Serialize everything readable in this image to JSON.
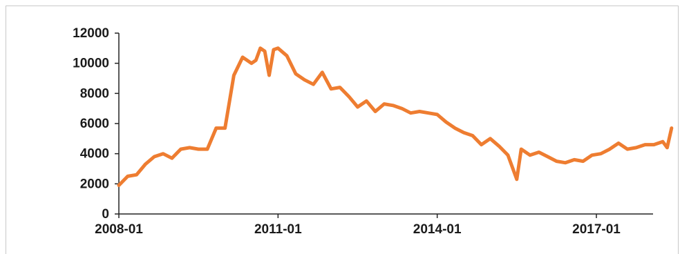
{
  "chart_data": {
    "type": "line",
    "title": "",
    "xlabel": "",
    "ylabel": "",
    "ylim": [
      0,
      12000
    ],
    "yticks": [
      0,
      2000,
      4000,
      6000,
      8000,
      10000,
      12000
    ],
    "xlim": [
      "2008-01",
      "2018-07"
    ],
    "xticks": [
      "2008-01",
      "2011-01",
      "2014-01",
      "2017-01"
    ],
    "grid": false,
    "legend": "none",
    "color": "#ee7d31",
    "series": [
      {
        "x": [
          "2008-01",
          "2008-03",
          "2008-05",
          "2008-07",
          "2008-09",
          "2008-11",
          "2009-01",
          "2009-03",
          "2009-05",
          "2009-07",
          "2009-09",
          "2009-11",
          "2010-01",
          "2010-03",
          "2010-05",
          "2010-07",
          "2010-08",
          "2010-09",
          "2010-10",
          "2010-11",
          "2010-12",
          "2011-01",
          "2011-03",
          "2011-05",
          "2011-07",
          "2011-09",
          "2011-11",
          "2012-01",
          "2012-03",
          "2012-05",
          "2012-07",
          "2012-09",
          "2012-11",
          "2013-01",
          "2013-03",
          "2013-05",
          "2013-07",
          "2013-09",
          "2013-11",
          "2014-01",
          "2014-03",
          "2014-05",
          "2014-07",
          "2014-09",
          "2014-11",
          "2015-01",
          "2015-03",
          "2015-05",
          "2015-07",
          "2015-08",
          "2015-10",
          "2015-12",
          "2016-02",
          "2016-04",
          "2016-06",
          "2016-08",
          "2016-10",
          "2016-12",
          "2017-02",
          "2017-04",
          "2017-06",
          "2017-08",
          "2017-10",
          "2017-12",
          "2018-02",
          "2018-04",
          "2018-05",
          "2018-06"
        ],
        "values": [
          1900,
          2500,
          2600,
          3300,
          3800,
          4000,
          3700,
          4300,
          4400,
          4300,
          4300,
          5700,
          5700,
          9200,
          10400,
          10000,
          10200,
          11000,
          10800,
          9200,
          10900,
          11000,
          10500,
          9300,
          8900,
          8600,
          9400,
          8300,
          8400,
          7800,
          7100,
          7500,
          6800,
          7300,
          7200,
          7000,
          6700,
          6800,
          6700,
          6600,
          6100,
          5700,
          5400,
          5200,
          4600,
          5000,
          4500,
          3900,
          2300,
          4300,
          3900,
          4100,
          3800,
          3500,
          3400,
          3600,
          3500,
          3900,
          4000,
          4300,
          4700,
          4300,
          4400,
          4600,
          4600,
          4800,
          4400,
          5700
        ]
      }
    ]
  }
}
